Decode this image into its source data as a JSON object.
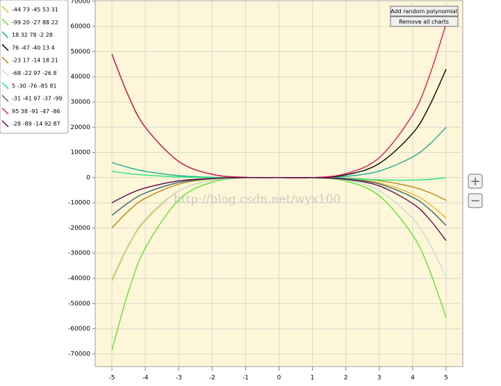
{
  "chart_data": {
    "type": "line",
    "x": [
      -5,
      -4.5,
      -4,
      -3,
      -2,
      -1,
      0,
      1,
      2,
      3,
      4,
      4.5,
      5
    ],
    "series": [
      {
        "name": "-44 73 -45 53 31",
        "color": "#e8b820",
        "values": [
          -41000,
          -27000,
          -17000,
          -5300,
          -1100,
          -100,
          0,
          0,
          -400,
          -2100,
          -6600,
          -10500,
          -16000
        ]
      },
      {
        "name": "-99 20 -27 88 22",
        "color": "#5ce62a",
        "values": [
          -68500,
          -45000,
          -28000,
          -8900,
          -1800,
          -100,
          0,
          -100,
          -1400,
          -7200,
          -22800,
          -36600,
          -55500
        ]
      },
      {
        "name": "18 32 78 -2 28",
        "color": "#1aab95",
        "values": [
          6000,
          4000,
          2500,
          800,
          150,
          0,
          0,
          0,
          500,
          2600,
          8200,
          13200,
          20000
        ]
      },
      {
        "name": "76 -47 -40 13 4",
        "color": "#000000",
        "values": [
          49000,
          32300,
          20000,
          6400,
          1300,
          100,
          0,
          0,
          1100,
          5600,
          17600,
          28400,
          43000
        ]
      },
      {
        "name": "-23 17 -14 18 21",
        "color": "#b8860b",
        "values": [
          -20000,
          -13200,
          -8200,
          -2600,
          -500,
          0,
          0,
          0,
          -200,
          -1200,
          -3700,
          -5900,
          -9000
        ]
      },
      {
        "name": "-68 -22 97 -26 8",
        "color": "#c4dde0",
        "values": [
          -40000,
          -26400,
          -16400,
          -5200,
          -1000,
          -100,
          0,
          -100,
          -1000,
          -5100,
          -16200,
          -26100,
          -39500
        ]
      },
      {
        "name": "5 -30 -76 -85 81",
        "color": "#20e878",
        "values": [
          2500,
          1600,
          1000,
          300,
          50,
          0,
          0,
          0,
          -300,
          -900,
          -1000,
          -700,
          0
        ]
      },
      {
        "name": "-31 -41 97 -37 -99",
        "color": "#3e6670",
        "values": [
          -15000,
          -9900,
          -6100,
          -1900,
          -400,
          0,
          0,
          0,
          -500,
          -2500,
          -7800,
          -12500,
          -19000
        ]
      },
      {
        "name": "95 38 -91 -47 -86",
        "color": "#d81e5a",
        "values": [
          49000,
          32300,
          20000,
          6400,
          1300,
          100,
          0,
          0,
          1600,
          7900,
          25000,
          40300,
          61000
        ]
      },
      {
        "name": "-28 -89 -14 92 87",
        "color": "#5c0a50",
        "values": [
          -10000,
          -6600,
          -4100,
          -1300,
          -300,
          0,
          0,
          0,
          -700,
          -3300,
          -10300,
          -16500,
          -25000
        ]
      }
    ],
    "xlim": [
      -5.5,
      5.5
    ],
    "ylim": [
      -75000,
      70500
    ],
    "xticks": [
      -5,
      -4,
      -3,
      -2,
      -1,
      0,
      1,
      2,
      3,
      4,
      5
    ],
    "yticks": [
      -70000,
      -60000,
      -50000,
      -40000,
      -30000,
      -20000,
      -10000,
      0,
      10000,
      20000,
      30000,
      40000,
      50000,
      60000,
      70000
    ],
    "grid": true,
    "legend": "left",
    "watermark": "http://blog.csdn.net/wyx100"
  },
  "controls": {
    "add": "Add random polynomial",
    "remove": "Remove all charts",
    "zoom_in": "+",
    "zoom_out": "−"
  }
}
